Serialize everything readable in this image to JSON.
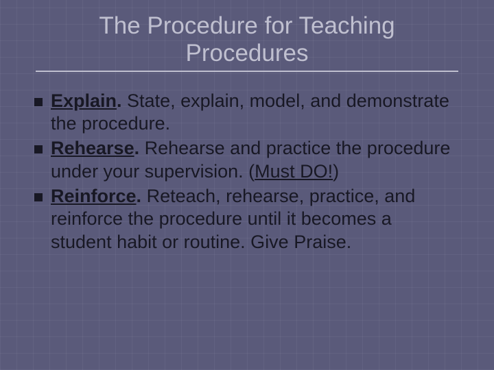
{
  "slide": {
    "background_color": "#5a5a7a",
    "grid_color": "rgba(255,255,255,0.05)",
    "title_color": "#c0c0d0",
    "body_color": "#181824",
    "title_fontsize": 35,
    "body_fontsize": 27,
    "title": "The Procedure for Teaching Procedures",
    "bullets": [
      {
        "lead": "Explain",
        "rest_before_emph": "  State, explain, model, and demonstrate the procedure.",
        "emph": "",
        "rest_after_emph": ""
      },
      {
        "lead": "Rehearse",
        "rest_before_emph": "  Rehearse and practice the procedure under your supervision. (",
        "emph": "Must DO!",
        "rest_after_emph": ")"
      },
      {
        "lead": "Reinforce",
        "rest_before_emph": "  Reteach, rehearse, practice, and reinforce the procedure until it becomes a student habit or routine. Give Praise.",
        "emph": "",
        "rest_after_emph": ""
      }
    ]
  }
}
